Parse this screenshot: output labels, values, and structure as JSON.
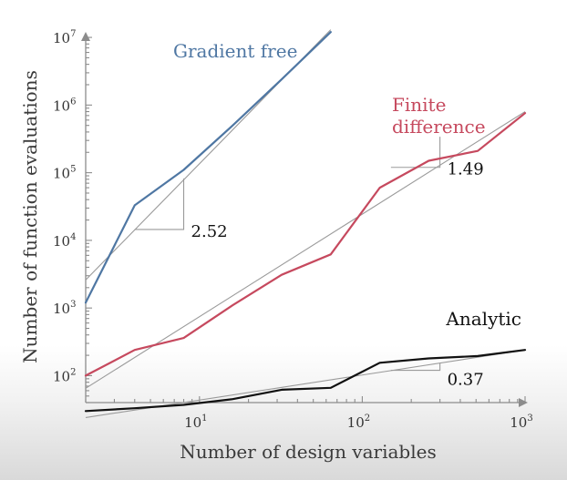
{
  "chart_data": {
    "type": "line",
    "x_scale": "log",
    "y_scale": "log",
    "xlabel": "Number of design variables",
    "ylabel": "Number of function evaluations",
    "xlim": [
      2,
      1000
    ],
    "ylim": [
      40,
      11000000
    ],
    "x_ticks": [
      {
        "base": "10",
        "exp": "1",
        "value": 10
      },
      {
        "base": "10",
        "exp": "2",
        "value": 100
      },
      {
        "base": "10",
        "exp": "3",
        "value": 1000
      }
    ],
    "y_ticks": [
      {
        "base": "10",
        "exp": "2",
        "value": 100
      },
      {
        "base": "10",
        "exp": "3",
        "value": 1000
      },
      {
        "base": "10",
        "exp": "4",
        "value": 10000
      },
      {
        "base": "10",
        "exp": "5",
        "value": 100000
      },
      {
        "base": "10",
        "exp": "6",
        "value": 1000000
      },
      {
        "base": "10",
        "exp": "7",
        "value": 10000000
      }
    ],
    "series": [
      {
        "name": "Gradient free",
        "color": "#4f77a3",
        "x": [
          2,
          4,
          8,
          16,
          32,
          64
        ],
        "y": [
          1200,
          33000,
          110000,
          500000,
          2400000,
          12000000
        ],
        "slope": "2.52",
        "fit": {
          "x": [
            2,
            64
          ],
          "y": [
            2600,
            13000000
          ]
        },
        "triangle": {
          "x": [
            4,
            8
          ],
          "y": [
            14500,
            82000
          ]
        }
      },
      {
        "name": "Finite\ndifference",
        "color": "#c6495e",
        "x": [
          2,
          4,
          8,
          16,
          32,
          64,
          128,
          256,
          512,
          1000
        ],
        "y": [
          100,
          240,
          360,
          1100,
          3100,
          6200,
          60000,
          150000,
          210000,
          760000
        ],
        "slope": "1.49",
        "fit": {
          "x": [
            2,
            1000
          ],
          "y": [
            65,
            800000
          ]
        },
        "triangle": {
          "x": [
            150,
            300
          ],
          "y": [
            120000,
            340000
          ]
        }
      },
      {
        "name": "Analytic",
        "color": "#111111",
        "x": [
          2,
          4,
          8,
          16,
          32,
          64,
          128,
          256,
          512,
          1000
        ],
        "y": [
          30,
          33,
          37,
          45,
          62,
          66,
          155,
          180,
          195,
          240
        ],
        "slope": "0.37",
        "fit": {
          "x": [
            2,
            1000
          ],
          "y": [
            24,
            240
          ]
        },
        "triangle": {
          "x": [
            150,
            300
          ],
          "y": [
            120,
            155
          ]
        }
      }
    ]
  }
}
